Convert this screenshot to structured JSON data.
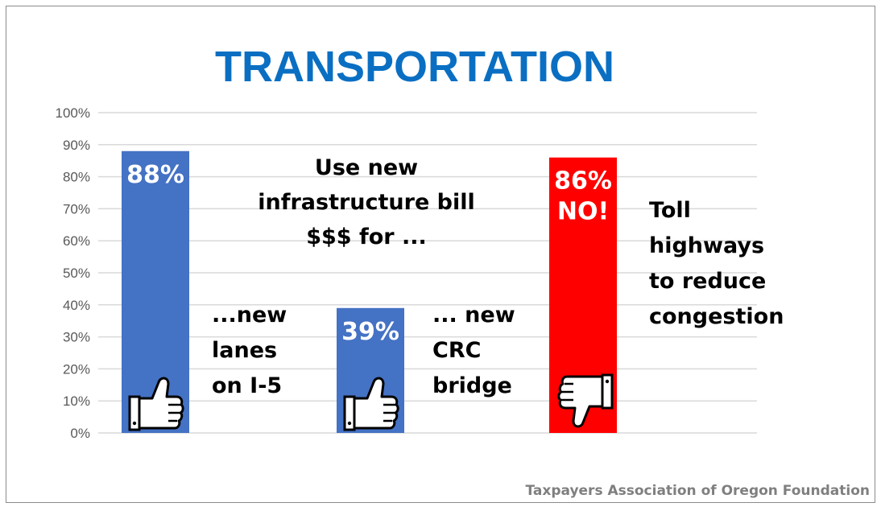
{
  "chart_data": {
    "type": "bar",
    "title": "TRANSPORTATION",
    "ylim": [
      0,
      100
    ],
    "yticks": [
      "0%",
      "10%",
      "20%",
      "30%",
      "40%",
      "50%",
      "60%",
      "70%",
      "80%",
      "90%",
      "100%"
    ],
    "grid": true,
    "bars": [
      {
        "value": 88,
        "label": "88%",
        "label2": "",
        "color": "#4472c4",
        "description": [
          "...new",
          "lanes",
          "on I-5"
        ],
        "icon": "thumbs-up-icon"
      },
      {
        "value": 39,
        "label": "39%",
        "label2": "",
        "color": "#4472c4",
        "description": [
          "... new",
          "CRC",
          "bridge"
        ],
        "icon": "thumbs-up-icon"
      },
      {
        "value": 86,
        "label": "86%",
        "label2": "NO!",
        "color": "#ff0000",
        "description": [
          "Toll",
          "highways",
          "to reduce",
          "congestion"
        ],
        "icon": "thumbs-down-icon"
      }
    ],
    "center_note": [
      "Use new",
      "infrastructure bill",
      "$$$ for ..."
    ],
    "source": "Taxpayers Association of Oregon Foundation"
  }
}
